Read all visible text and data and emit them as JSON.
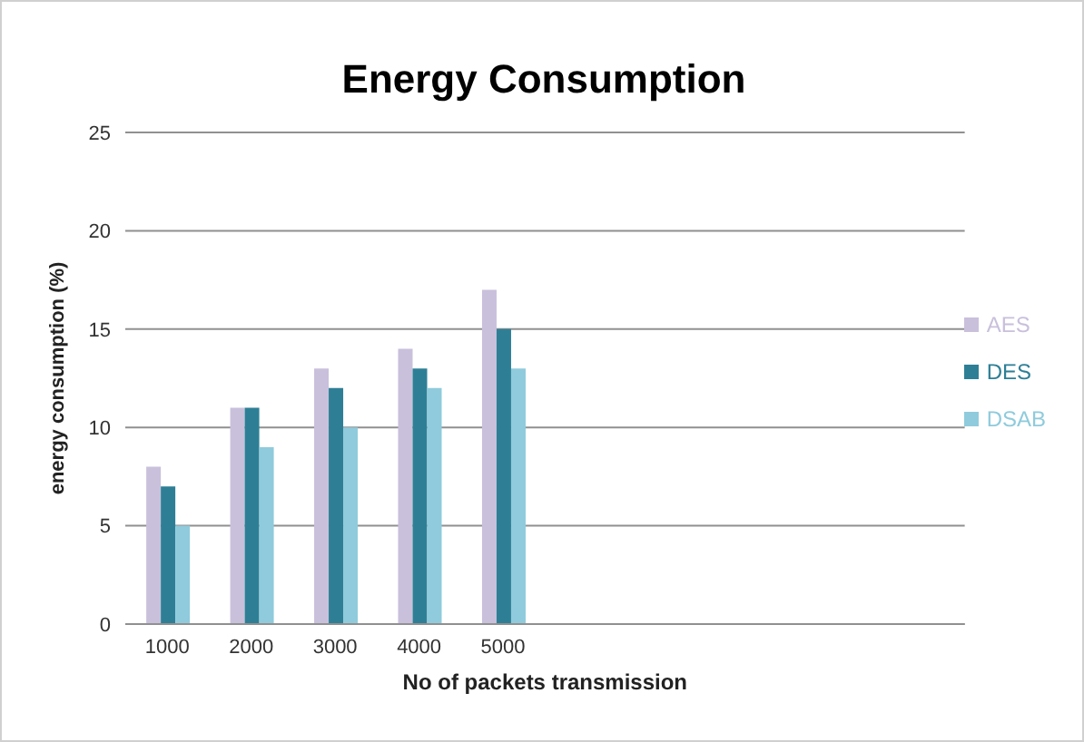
{
  "chart_data": {
    "type": "bar",
    "title": "Energy Consumption",
    "xlabel": "No of packets transmission",
    "ylabel": "energy consumption  (%)",
    "categories": [
      "1000",
      "2000",
      "3000",
      "4000",
      "5000",
      null,
      null,
      null,
      null,
      null
    ],
    "series": [
      {
        "name": "AES",
        "color": "#c9c0dc",
        "values": [
          8,
          11,
          13,
          14,
          17,
          null,
          null,
          null,
          null,
          null
        ]
      },
      {
        "name": "DES",
        "color": "#2e7f96",
        "values": [
          7,
          11,
          12,
          13,
          15,
          null,
          null,
          null,
          null,
          null
        ]
      },
      {
        "name": "DSAB",
        "color": "#8fcbdc",
        "values": [
          5,
          9,
          10,
          12,
          13,
          null,
          null,
          null,
          null,
          null
        ]
      }
    ],
    "ylim": [
      0,
      25
    ],
    "yticks": [
      0,
      5,
      10,
      15,
      20,
      25
    ],
    "grid": "y",
    "legend": "right"
  }
}
